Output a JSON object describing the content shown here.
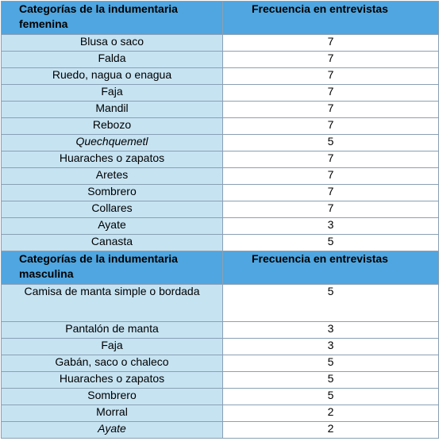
{
  "sections": [
    {
      "header": {
        "category": "Categorías de la indumentaria femenina",
        "frequency": "Frecuencia en entrevistas"
      },
      "rows": [
        {
          "category": "Blusa o saco",
          "frequency": "7",
          "italic": false
        },
        {
          "category": "Falda",
          "frequency": "7",
          "italic": false
        },
        {
          "category": "Ruedo, nagua o enagua",
          "frequency": "7",
          "italic": false
        },
        {
          "category": "Faja",
          "frequency": "7",
          "italic": false
        },
        {
          "category": "Mandil",
          "frequency": "7",
          "italic": false
        },
        {
          "category": "Rebozo",
          "frequency": "7",
          "italic": false
        },
        {
          "category": "Quechquemetl",
          "frequency": "5",
          "italic": true
        },
        {
          "category": "Huaraches o zapatos",
          "frequency": "7",
          "italic": false
        },
        {
          "category": "Aretes",
          "frequency": "7",
          "italic": false
        },
        {
          "category": "Sombrero",
          "frequency": "7",
          "italic": false
        },
        {
          "category": "Collares",
          "frequency": "7",
          "italic": false
        },
        {
          "category": "Ayate",
          "frequency": "3",
          "italic": false
        },
        {
          "category": "Canasta",
          "frequency": "5",
          "italic": false
        }
      ]
    },
    {
      "header": {
        "category": "Categorías de la indumentaria masculina",
        "frequency": "Frecuencia en entrevistas"
      },
      "rows": [
        {
          "category": "Camisa de manta simple o bordada",
          "frequency": "5",
          "italic": false
        },
        {
          "category": "Pantalón de manta",
          "frequency": "3",
          "italic": false
        },
        {
          "category": "Faja",
          "frequency": "3",
          "italic": false
        },
        {
          "category": "Gabán, saco o chaleco",
          "frequency": "5",
          "italic": false
        },
        {
          "category": "Huaraches o zapatos",
          "frequency": "5",
          "italic": false
        },
        {
          "category": "Sombrero",
          "frequency": "5",
          "italic": false
        },
        {
          "category": "Morral",
          "frequency": "2",
          "italic": false
        },
        {
          "category": "Ayate",
          "frequency": "2",
          "italic": true
        }
      ]
    }
  ]
}
